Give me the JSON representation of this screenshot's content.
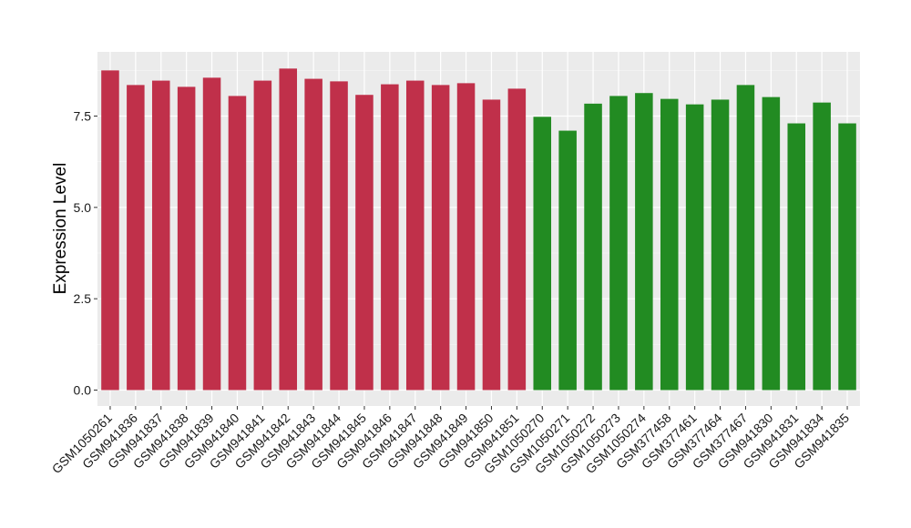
{
  "chart_data": {
    "type": "bar",
    "title": "",
    "xlabel": "",
    "ylabel": "Expression Level",
    "ylim": [
      0,
      8.85
    ],
    "yticks": [
      0.0,
      2.5,
      5.0,
      7.5
    ],
    "ytick_labels": [
      "0.0",
      "2.5",
      "5.0",
      "7.5"
    ],
    "grid": true,
    "background": "#ebebeb",
    "categories": [
      "GSM1050261",
      "GSM941836",
      "GSM941837",
      "GSM941838",
      "GSM941839",
      "GSM941840",
      "GSM941841",
      "GSM941842",
      "GSM941843",
      "GSM941844",
      "GSM941845",
      "GSM941846",
      "GSM941847",
      "GSM941848",
      "GSM941849",
      "GSM941850",
      "GSM941851",
      "GSM1050270",
      "GSM1050271",
      "GSM1050272",
      "GSM1050273",
      "GSM1050274",
      "GSM377458",
      "GSM377461",
      "GSM377464",
      "GSM377467",
      "GSM941830",
      "GSM941831",
      "GSM941834",
      "GSM941835"
    ],
    "values": [
      8.75,
      8.35,
      8.47,
      8.3,
      8.55,
      8.05,
      8.47,
      8.8,
      8.52,
      8.45,
      8.08,
      8.37,
      8.47,
      8.35,
      8.4,
      7.95,
      8.25,
      7.48,
      7.1,
      7.84,
      8.05,
      8.13,
      7.97,
      7.82,
      7.95,
      8.35,
      8.02,
      7.3,
      7.87,
      7.3
    ],
    "bar_colors": [
      "#c0304a",
      "#c0304a",
      "#c0304a",
      "#c0304a",
      "#c0304a",
      "#c0304a",
      "#c0304a",
      "#c0304a",
      "#c0304a",
      "#c0304a",
      "#c0304a",
      "#c0304a",
      "#c0304a",
      "#c0304a",
      "#c0304a",
      "#c0304a",
      "#c0304a",
      "#228b22",
      "#228b22",
      "#228b22",
      "#228b22",
      "#228b22",
      "#228b22",
      "#228b22",
      "#228b22",
      "#228b22",
      "#228b22",
      "#228b22",
      "#228b22",
      "#228b22"
    ]
  }
}
